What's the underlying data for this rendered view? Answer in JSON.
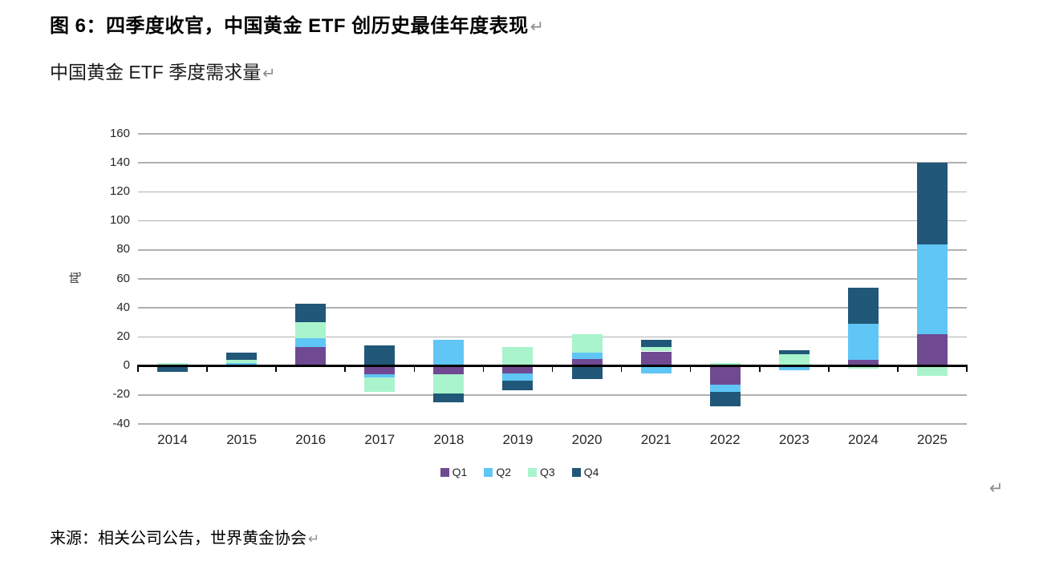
{
  "page": {
    "title": "图 6：四季度收官，中国黄金 ETF 创历史最佳年度表现",
    "subtitle": "中国黄金 ETF 季度需求量",
    "source": "来源：相关公司公告，世界黄金协会",
    "paragraph_mark": "↵"
  },
  "chart_data": {
    "type": "bar",
    "stacked": true,
    "title": "中国黄金 ETF 季度需求量",
    "xlabel": "",
    "ylabel": "吨",
    "ylim": [
      -40,
      160
    ],
    "yticks": [
      160,
      140,
      120,
      100,
      80,
      60,
      40,
      20,
      0,
      -20,
      -40
    ],
    "grid": true,
    "legend_position": "bottom",
    "categories": [
      "2014",
      "2015",
      "2016",
      "2017",
      "2018",
      "2019",
      "2020",
      "2021",
      "2022",
      "2023",
      "2024",
      "2025"
    ],
    "series": [
      {
        "name": "Q1",
        "color": "#6F4A93",
        "values": [
          0,
          0,
          13,
          -6,
          -6,
          -5,
          5,
          10,
          -13,
          0,
          4,
          22
        ]
      },
      {
        "name": "Q2",
        "color": "#5FC6F5",
        "values": [
          -1,
          2,
          6,
          -2,
          18,
          -5,
          4,
          -5,
          -5,
          -3,
          25,
          62
        ]
      },
      {
        "name": "Q3",
        "color": "#A9F4CC",
        "values": [
          2,
          2,
          11,
          -10,
          -13,
          13,
          13,
          3,
          2,
          8,
          -2,
          -7
        ]
      },
      {
        "name": "Q4",
        "color": "#215778",
        "values": [
          -3,
          5,
          13,
          14,
          -6,
          -7,
          -9,
          5,
          -10,
          3,
          25,
          56
        ]
      }
    ]
  },
  "colors": {
    "gridline": "#B0B0B0",
    "axis": "#000000",
    "paragraph_mark": "#8C8C8C"
  }
}
